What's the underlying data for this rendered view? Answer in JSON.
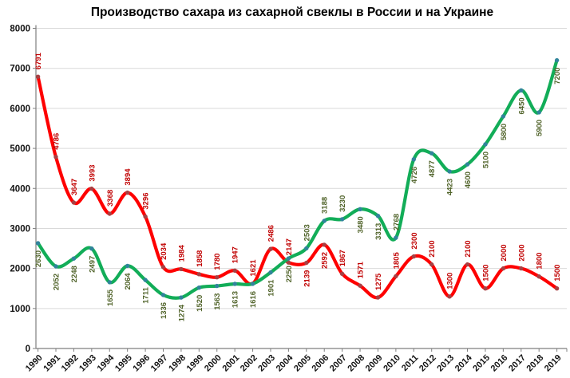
{
  "chart_data": {
    "type": "line",
    "title": "Производство сахара из сахарной свеклы в России и на Украине",
    "categories": [
      "1990",
      "1991",
      "1992",
      "1993",
      "1994",
      "1995",
      "1996",
      "1997",
      "1998",
      "1999",
      "2000",
      "2001",
      "2002",
      "2003",
      "2004",
      "2005",
      "2006",
      "2007",
      "2008",
      "2009",
      "2010",
      "2011",
      "2012",
      "2013",
      "2014",
      "2015",
      "2016",
      "2017",
      "2018",
      "2019"
    ],
    "ylim": [
      0,
      8000
    ],
    "ytick_step": 1000,
    "yticks": [
      0,
      1000,
      2000,
      3000,
      4000,
      5000,
      6000,
      7000,
      8000
    ],
    "grid": true,
    "legend_position": "none",
    "smooth_lines": true,
    "colors": {
      "grid": "#d9d9d9",
      "axis": "#7f7f7f",
      "background": "#ffffff"
    },
    "series": [
      {
        "id": "red-line",
        "line_color": "#fe0000",
        "marker_color": "#a84043",
        "label_color": "#c00000",
        "values": [
          6791,
          4786,
          3647,
          3993,
          3368,
          3894,
          3296,
          2034,
          1984,
          1858,
          1780,
          1947,
          1621,
          2486,
          2147,
          2139,
          2592,
          1867,
          1571,
          1275,
          1805,
          2300,
          2100,
          1300,
          2100,
          1500,
          2000,
          2000,
          1800,
          1500
        ],
        "label_side": [
          "a",
          "a",
          "a",
          "a",
          "a",
          "a",
          "a",
          "a",
          "a",
          "a",
          "a",
          "a",
          "a",
          "a",
          "a",
          "b",
          "b",
          "a",
          "a",
          "a",
          "a",
          "a",
          "a",
          "a",
          "a",
          "a",
          "a",
          "a",
          "a",
          "a"
        ]
      },
      {
        "id": "green-line",
        "line_color": "#12ad58",
        "marker_color": "#31849b",
        "label_color": "#4f6228",
        "values": [
          2630,
          2052,
          2248,
          2497,
          1655,
          2064,
          1711,
          1336,
          1274,
          1520,
          1563,
          1613,
          1616,
          1901,
          2250,
          2503,
          3188,
          3230,
          3480,
          3313,
          2768,
          4726,
          4877,
          4423,
          4600,
          5100,
          5800,
          6450,
          5900,
          7200
        ],
        "label_side": [
          "b",
          "b",
          "b",
          "b",
          "b",
          "b",
          "b",
          "b",
          "b",
          "b",
          "b",
          "b",
          "b",
          "b",
          "b",
          "a",
          "a",
          "a",
          "b",
          "b",
          "a",
          "b",
          "b",
          "b",
          "b",
          "b",
          "b",
          "b",
          "b",
          "b"
        ]
      }
    ]
  }
}
